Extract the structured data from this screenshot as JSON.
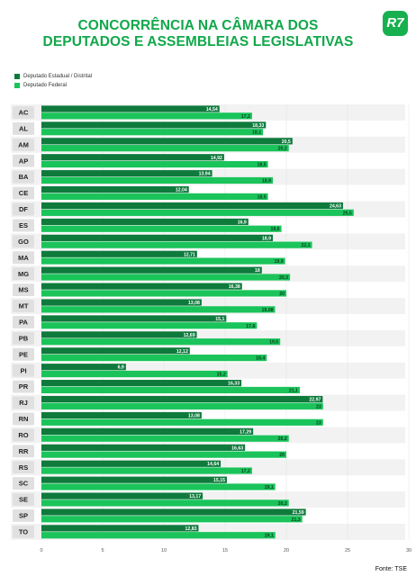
{
  "title_lines": [
    "CONCORRÊNCIA NA CÂMARA DOS",
    "DEPUTADOS E ASSEMBLEIAS LEGISLATIVAS"
  ],
  "logo": "R7",
  "source": "Fonte: TSE",
  "colors": {
    "estadual": "#0e7a3c",
    "federal": "#1ac45a",
    "title": "#11a84a",
    "row_alt": "#f2f2f2",
    "label_bg": "#e0e0e0"
  },
  "chart_data": {
    "type": "bar",
    "orientation": "horizontal",
    "categories": [
      "AC",
      "AL",
      "AM",
      "AP",
      "BA",
      "CE",
      "DF",
      "ES",
      "GO",
      "MA",
      "MG",
      "MS",
      "MT",
      "PA",
      "PB",
      "PE",
      "PI",
      "PR",
      "RJ",
      "RN",
      "RO",
      "RR",
      "RS",
      "SC",
      "SE",
      "SP",
      "TO"
    ],
    "series": [
      {
        "name": "Deputado Estadual / Distrital",
        "values": [
          14.54,
          18.33,
          20.5,
          14.92,
          13.94,
          12.04,
          24.63,
          16.9,
          18.9,
          12.71,
          18,
          16.38,
          13.08,
          15.1,
          12.69,
          12.12,
          6.9,
          16.33,
          22.97,
          13.08,
          17.29,
          16.63,
          14.64,
          15.15,
          13.17,
          21.59,
          12.83
        ],
        "labels": [
          "14,54",
          "18,33",
          "20,5",
          "14,92",
          "13,94",
          "12,04",
          "24,63",
          "16,9",
          "18,9",
          "12,71",
          "18",
          "16,38",
          "13,08",
          "15,1",
          "12,69",
          "12,12",
          "6,9",
          "16,33",
          "22,97",
          "13,08",
          "17,29",
          "16,63",
          "14,64",
          "15,15",
          "13,17",
          "21,59",
          "12,83"
        ]
      },
      {
        "name": "Deputado Federal",
        "values": [
          17.2,
          18.1,
          20.2,
          18.5,
          18.9,
          18.5,
          25.5,
          19.6,
          22.1,
          19.9,
          20.3,
          20,
          19.08,
          17.6,
          19.5,
          18.4,
          15.2,
          21.1,
          23,
          23,
          20.2,
          20,
          17.2,
          19.1,
          20.2,
          21.3,
          19.1
        ],
        "labels": [
          "17,2",
          "18,1",
          "20,2",
          "18,5",
          "18,9",
          "18,5",
          "25,5",
          "19,6",
          "22,1",
          "19,9",
          "20,3",
          "20",
          "19,08",
          "17,6",
          "19,5",
          "18,4",
          "15,2",
          "21,1",
          "23",
          "23",
          "20,2",
          "20",
          "17,2",
          "19,1",
          "20,2",
          "21,3",
          "19,1"
        ]
      }
    ],
    "x_ticks": [
      "0",
      "5",
      "10",
      "15",
      "20",
      "25",
      "30"
    ],
    "xlim": [
      0,
      30
    ],
    "legend_position": "top-left"
  }
}
